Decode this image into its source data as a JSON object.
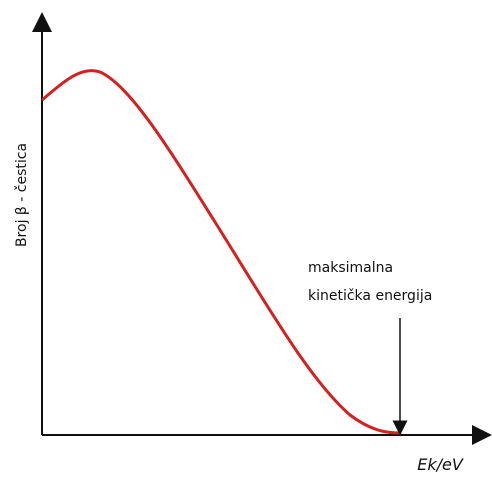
{
  "axes": {
    "y_label": "Broj β - čestica",
    "x_label": "Ek/eV"
  },
  "annotation": {
    "lines": [
      "maksimalna",
      "kinetička energija"
    ]
  }
}
